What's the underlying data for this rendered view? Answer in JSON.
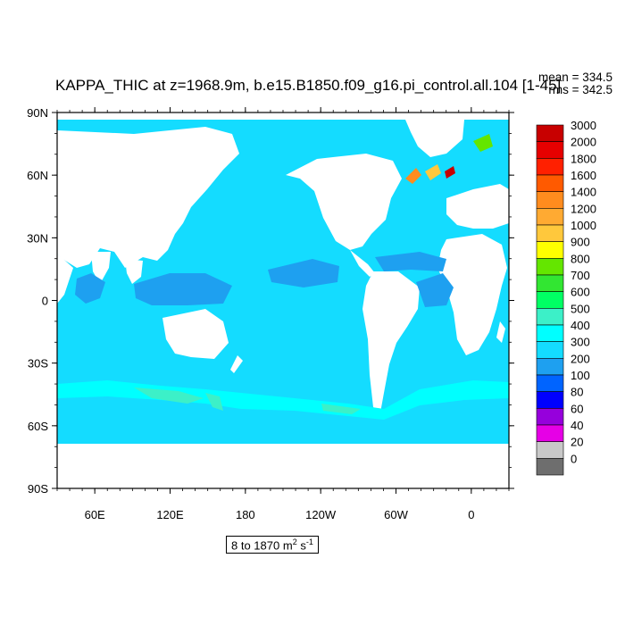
{
  "title": "KAPPA_THIC at z=1968.9m, b.e15.B1850.f09_g16.pi_control.all.104 [1-45]",
  "stats": {
    "mean": "mean = 334.5",
    "rms": "rms = 342.5"
  },
  "range_label": "8 to 1870",
  "units": {
    "base": "m",
    "exp1": "2",
    "mid": " s",
    "exp2": "-1"
  },
  "axes": {
    "y_ticks": [
      "90N",
      "60N",
      "30N",
      "0",
      "30S",
      "60S",
      "90S"
    ],
    "x_ticks": [
      "60E",
      "120E",
      "180",
      "120W",
      "60W",
      "0"
    ]
  },
  "colorbar": {
    "labels": [
      "3000",
      "2000",
      "1800",
      "1600",
      "1400",
      "1200",
      "1000",
      "900",
      "800",
      "700",
      "600",
      "500",
      "400",
      "300",
      "200",
      "100",
      "80",
      "60",
      "40",
      "20",
      "0"
    ],
    "colors": [
      "#c80000",
      "#e60000",
      "#ff2000",
      "#ff5a00",
      "#ff8c1e",
      "#ffaa32",
      "#ffc83c",
      "#ffff00",
      "#64e600",
      "#32e632",
      "#00ff64",
      "#3cf0c8",
      "#00ffff",
      "#14dcff",
      "#1ea0f0",
      "#0064ff",
      "#0000ff",
      "#9600dc",
      "#e600e6",
      "#c8c8c8",
      "#6e6e6e"
    ]
  },
  "map": {
    "ocean_color": "#14dcff",
    "land_color": "#ffffff",
    "projection": "cylindrical-equidistant",
    "lon_range": [
      30,
      390
    ],
    "lat_range": [
      -90,
      90
    ]
  }
}
